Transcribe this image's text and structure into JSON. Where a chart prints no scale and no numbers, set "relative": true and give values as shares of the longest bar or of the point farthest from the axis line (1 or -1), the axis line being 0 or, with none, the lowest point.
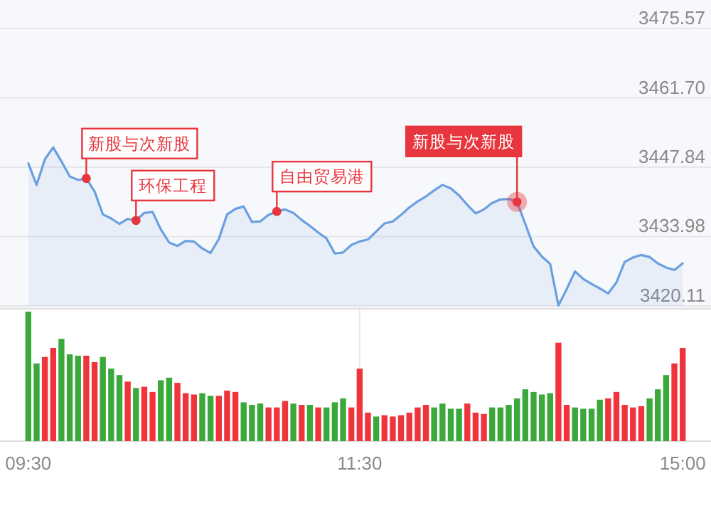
{
  "chart_data": [
    {
      "type": "area",
      "ylim": [
        3420.11,
        3475.57
      ],
      "yticks": [
        3420.11,
        3433.98,
        {
          "value": 3447.84,
          "label": "3447.84"
        },
        {
          "value": 3461.7,
          "label": "3461.70"
        },
        3475.57
      ],
      "tick_labels": "y",
      "grid": "y",
      "categories": [
        null,
        null,
        null,
        null,
        null,
        null,
        null,
        null,
        null,
        null,
        null,
        null,
        null,
        null,
        null,
        null,
        null,
        null,
        null,
        null,
        null,
        null,
        null,
        null,
        null,
        null,
        null,
        null,
        null,
        null,
        null,
        null,
        null,
        null,
        null,
        null,
        null,
        null,
        null,
        null,
        null,
        null,
        null,
        null,
        null,
        null,
        null,
        null,
        null,
        null,
        null,
        null,
        null,
        null,
        null,
        null,
        null,
        null,
        null,
        null,
        null,
        null,
        null,
        null,
        null,
        null,
        null,
        null,
        null,
        null,
        null,
        null,
        null,
        null,
        null,
        null,
        null,
        null,
        null,
        null
      ],
      "series": [
        {
          "color": "#6a9fe0",
          "values": [
            3448.6,
            3444.3,
            3449.4,
            3451.8,
            3449.0,
            3446.0,
            3445.3,
            3445.6,
            3443.0,
            3438.4,
            3437.6,
            3436.5,
            3437.5,
            3437.2,
            3438.7,
            3438.9,
            3435.4,
            3432.8,
            3432.1,
            3433.1,
            3433.0,
            3431.6,
            3430.7,
            3433.5,
            3438.4,
            3439.5,
            3440.0,
            3436.9,
            3437.0,
            3438.3,
            3439.0,
            3439.4,
            3438.7,
            3437.3,
            3436.1,
            3434.8,
            3433.6,
            3430.6,
            3430.8,
            3432.3,
            3433.0,
            3433.4,
            3435.0,
            3436.6,
            3437.0,
            3438.3,
            3439.8,
            3441.0,
            3442.0,
            3443.2,
            3444.3,
            3443.6,
            3442.2,
            3440.3,
            3438.6,
            3439.4,
            3440.7,
            3441.4,
            3441.5,
            3440.9,
            3436.5,
            3432.0,
            3430.0,
            3428.5,
            3420.2,
            3423.5,
            3427.0,
            3425.5,
            3424.5,
            3423.6,
            3422.6,
            3424.8,
            3428.9,
            3429.8,
            3430.3,
            3429.9,
            3428.6,
            3427.8,
            3427.3,
            3428.6
          ]
        }
      ],
      "annotations": [
        "新股与次新股",
        "环保工程",
        "自由贸易港",
        "新股与次新股"
      ]
    },
    {
      "type": "bar",
      "relative": true,
      "grid": "x",
      "categories": [
        "09:30",
        null,
        null,
        null,
        null,
        null,
        null,
        null,
        null,
        null,
        null,
        null,
        null,
        null,
        null,
        null,
        null,
        null,
        null,
        null,
        null,
        null,
        null,
        null,
        null,
        null,
        null,
        null,
        null,
        null,
        null,
        null,
        null,
        null,
        null,
        null,
        null,
        null,
        null,
        null,
        "11:30",
        null,
        null,
        null,
        null,
        null,
        null,
        null,
        null,
        null,
        null,
        null,
        null,
        null,
        null,
        null,
        null,
        null,
        null,
        null,
        null,
        null,
        null,
        null,
        null,
        null,
        null,
        null,
        null,
        null,
        null,
        null,
        null,
        null,
        null,
        null,
        null,
        null,
        null,
        "15:00"
      ],
      "values": [
        1.0,
        0.6,
        0.65,
        0.72,
        0.79,
        0.67,
        0.66,
        0.66,
        0.61,
        0.65,
        0.56,
        0.51,
        0.46,
        0.41,
        0.42,
        0.38,
        0.47,
        0.49,
        0.45,
        0.37,
        0.36,
        0.37,
        0.35,
        0.35,
        0.39,
        0.38,
        0.3,
        0.28,
        0.29,
        0.26,
        0.26,
        0.31,
        0.29,
        0.28,
        0.28,
        0.26,
        0.26,
        0.3,
        0.33,
        0.26,
        0.56,
        0.22,
        0.19,
        0.2,
        0.19,
        0.2,
        0.22,
        0.26,
        0.28,
        0.26,
        0.29,
        0.25,
        0.25,
        0.29,
        0.22,
        0.21,
        0.26,
        0.26,
        0.28,
        0.33,
        0.4,
        0.38,
        0.36,
        0.37,
        0.76,
        0.28,
        0.26,
        0.25,
        0.25,
        0.32,
        0.33,
        0.38,
        0.28,
        0.26,
        0.27,
        0.33,
        0.4,
        0.51,
        0.6,
        0.72
      ],
      "colors": [
        "#3aa83a",
        "#3aa83a",
        "#f0343c",
        "#f0343c",
        "#3aa83a",
        "#3aa83a",
        "#3aa83a",
        "#f0343c",
        "#f0343c",
        "#3aa83a",
        "#3aa83a",
        "#3aa83a",
        "#f0343c",
        "#3aa83a",
        "#f0343c",
        "#f0343c",
        "#3aa83a",
        "#3aa83a",
        "#f0343c",
        "#f0343c",
        "#f0343c",
        "#3aa83a",
        "#3aa83a",
        "#f0343c",
        "#f0343c",
        "#f0343c",
        "#3aa83a",
        "#3aa83a",
        "#3aa83a",
        "#f0343c",
        "#f0343c",
        "#f0343c",
        "#3aa83a",
        "#f0343c",
        "#3aa83a",
        "#f0343c",
        "#3aa83a",
        "#3aa83a",
        "#3aa83a",
        "#f0343c",
        "#f0343c",
        "#f0343c",
        "#3aa83a",
        "#f0343c",
        "#f0343c",
        "#f0343c",
        "#f0343c",
        "#f0343c",
        "#f0343c",
        "#3aa83a",
        "#3aa83a",
        "#3aa83a",
        "#3aa83a",
        "#f0343c",
        "#f0343c",
        "#f0343c",
        "#3aa83a",
        "#3aa83a",
        "#3aa83a",
        "#3aa83a",
        "#3aa83a",
        "#3aa83a",
        "#3aa83a",
        "#3aa83a",
        "#f0343c",
        "#f0343c",
        "#3aa83a",
        "#3aa83a",
        "#3aa83a",
        "#3aa83a",
        "#f0343c",
        "#f0343c",
        "#f0343c",
        "#f0343c",
        "#f0343c",
        "#3aa83a",
        "#3aa83a",
        "#3aa83a",
        "#f0343c",
        "#f0343c"
      ]
    }
  ]
}
